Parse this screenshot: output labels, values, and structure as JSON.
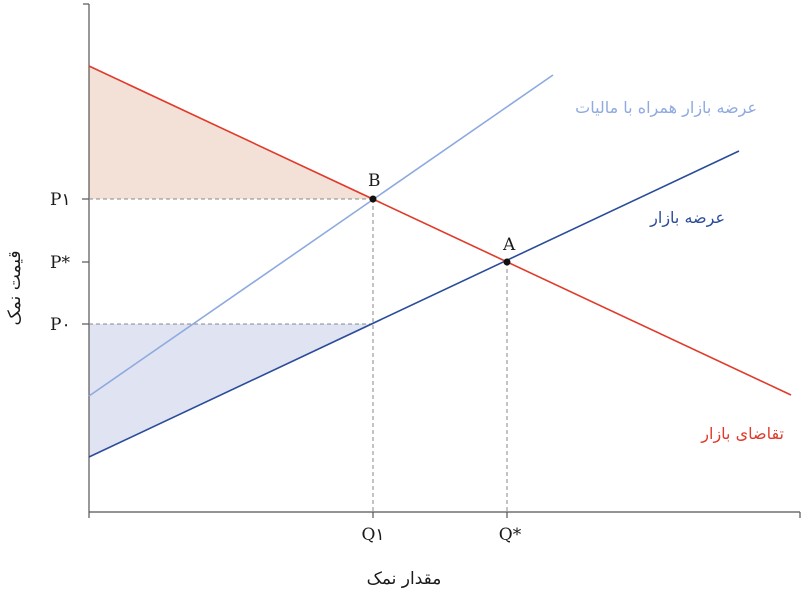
{
  "diagram": {
    "axes": {
      "x_title": "مقدار نمک",
      "y_title": "قیمت نمک"
    },
    "y_ticks": {
      "p1": "P۱",
      "p_star": "P*",
      "p0": "P۰"
    },
    "x_ticks": {
      "q1": "Q۱",
      "q_star": "Q*"
    },
    "points": {
      "a": "A",
      "b": "B"
    },
    "curves": {
      "supply_with_tax": {
        "label": "عرضه بازار همراه با مالیات",
        "color": "#8eaadf"
      },
      "supply": {
        "label": "عرضه بازار",
        "color": "#2b4c9b"
      },
      "demand": {
        "label": "تقاضای بازار",
        "color": "#e03a2a"
      }
    },
    "areas": {
      "consumer_burden_color": "#f3e0d6",
      "producer_burden_color": "#dfe3f2"
    }
  }
}
